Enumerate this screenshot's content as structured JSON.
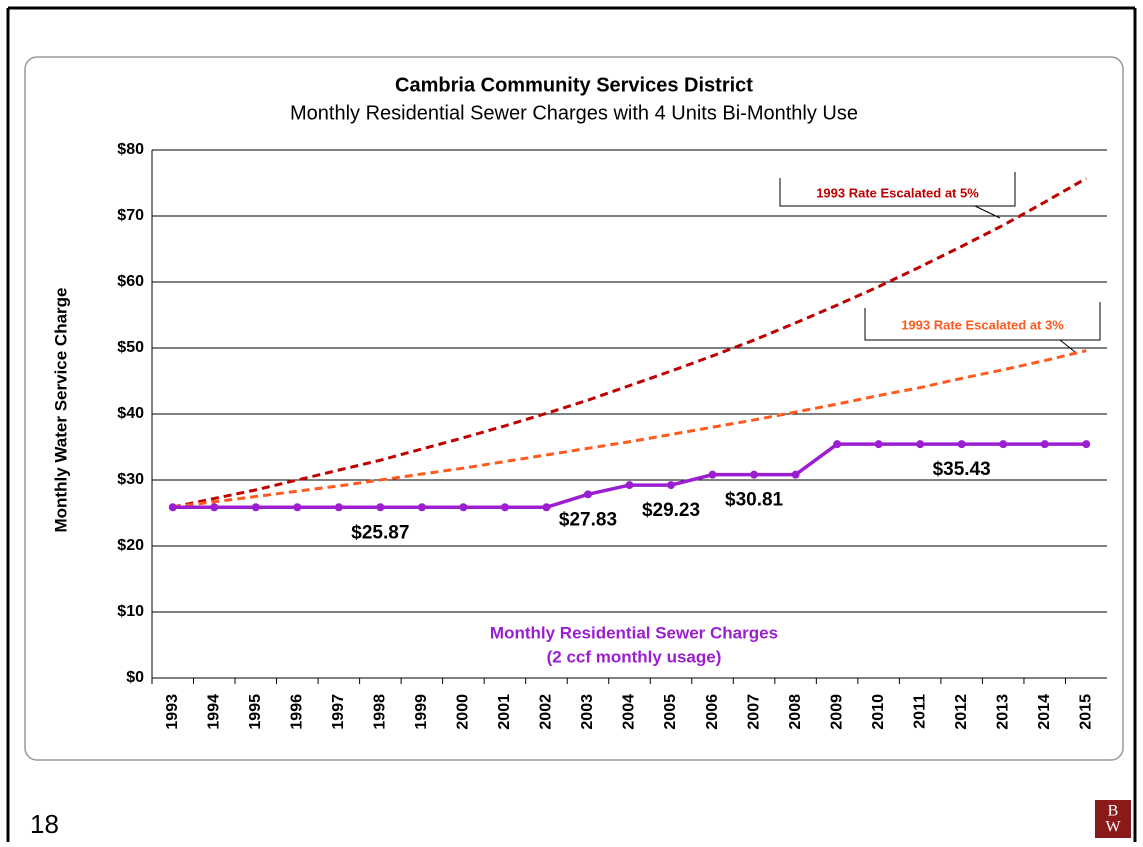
{
  "chart_data": {
    "type": "line",
    "title": "Cambria Community Services District",
    "subtitle": "Monthly Residential Sewer Charges with 4 Units Bi-Monthly Use",
    "y_label": "Monthly Water Service Charge",
    "categories": [
      "1993",
      "1994",
      "1995",
      "1996",
      "1997",
      "1998",
      "1999",
      "2000",
      "2001",
      "2002",
      "2003",
      "2004",
      "2005",
      "2006",
      "2007",
      "2008",
      "2009",
      "2010",
      "2011",
      "2012",
      "2013",
      "2014",
      "2015"
    ],
    "series": [
      {
        "name": "1993 Rate Escalated at 5%",
        "color": "#c00000",
        "dashed": true,
        "values": [
          25.9,
          27.2,
          28.5,
          30.0,
          31.5,
          33.0,
          34.7,
          36.4,
          38.2,
          40.1,
          42.1,
          44.3,
          46.5,
          48.8,
          51.2,
          53.8,
          56.5,
          59.3,
          62.3,
          65.4,
          68.6,
          72.1,
          75.7
        ]
      },
      {
        "name": "1993 Rate Escalated at 3%",
        "color": "#ff5a1f",
        "dashed": true,
        "values": [
          25.9,
          26.7,
          27.5,
          28.3,
          29.1,
          30.0,
          30.9,
          31.8,
          32.8,
          33.8,
          34.8,
          35.8,
          36.9,
          38.0,
          39.1,
          40.3,
          41.5,
          42.8,
          44.0,
          45.4,
          46.7,
          48.1,
          49.6
        ]
      },
      {
        "name": "Monthly Residential Sewer Charges",
        "color": "#9b1fd0",
        "dashed": false,
        "markers": true,
        "values": [
          25.87,
          25.87,
          25.87,
          25.87,
          25.87,
          25.87,
          25.87,
          25.87,
          25.87,
          25.87,
          27.83,
          29.23,
          29.23,
          30.81,
          30.81,
          30.81,
          35.43,
          35.43,
          35.43,
          35.43,
          35.43,
          35.43,
          35.43
        ],
        "value_labels": [
          null,
          null,
          null,
          null,
          null,
          "$25.87",
          null,
          null,
          null,
          null,
          "$27.83",
          null,
          "$29.23",
          null,
          "$30.81",
          null,
          null,
          null,
          null,
          "$35.43",
          null,
          null,
          null
        ]
      }
    ],
    "series_note": "(2 ccf monthly usage)",
    "ylim": [
      0,
      80
    ],
    "yticks": [
      {
        "value": 0,
        "label": "$0"
      },
      {
        "value": 10,
        "label": "$10"
      },
      {
        "value": 20,
        "label": "$20"
      },
      {
        "value": 30,
        "label": "$30"
      },
      {
        "value": 40,
        "label": "$40"
      },
      {
        "value": 50,
        "label": "$50"
      },
      {
        "value": 60,
        "label": "$60"
      },
      {
        "value": 70,
        "label": "$70"
      },
      {
        "value": 80,
        "label": "$80"
      }
    ],
    "grid": true
  },
  "page_number": "18",
  "logo": [
    "B",
    "W"
  ]
}
